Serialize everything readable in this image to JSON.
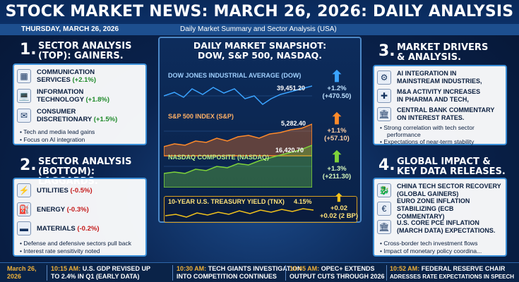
{
  "header": {
    "title": "STOCK MARKET NEWS: MARCH 26, 2026: DAILY ANALYSIS",
    "date": "THURSDAY, MARCH 26, 2026",
    "subtitle": "Daily Market Summary and Sector Analysis (USA)"
  },
  "section1": {
    "num": "1.",
    "title_line1": "SECTOR ANALYSIS",
    "title_line2": "(TOP): GAINERS.",
    "items": [
      {
        "name_line1": "COMMUNICATION",
        "name_line2": "SERVICES",
        "change": "(+2.1%)",
        "icon": "chip-icon"
      },
      {
        "name_line1": "INFORMATION",
        "name_line2": "TECHNOLOGY",
        "change": "(+1.8%)",
        "icon": "laptop-icon"
      },
      {
        "name_line1": "CONSUMER",
        "name_line2": "DISCRETIONARY",
        "change": "(+1.5%)",
        "icon": "chat-icon"
      }
    ],
    "bullets": [
      "Tech and media lead gains",
      "Focus on AI integration"
    ]
  },
  "section2": {
    "num": "2.",
    "title_line1": "SECTOR ANALYSIS",
    "title_line2": "(BOTTOM): LAGGARDS.",
    "items": [
      {
        "name": "UTILITIES",
        "change": "(-0.5%)",
        "icon": "power-tower-icon"
      },
      {
        "name": "ENERGY",
        "change": "(-0.3%)",
        "icon": "oil-pump-icon"
      },
      {
        "name": "MATERIALS",
        "change": "(-0.2%)",
        "icon": "steel-bar-icon"
      }
    ],
    "bullets": [
      "Defense and defensive sectors pull back",
      "Interest rate sensitivity noted"
    ]
  },
  "center": {
    "title_line1": "DAILY MARKET SNAPSHOT:",
    "title_line2": "DOW, S&P 500, NASDAQ.",
    "dow": {
      "label": "DOW JONES INDUSTRIAL AVERAGE (DOW)",
      "value": "39,451.20",
      "pct": "+1.2%",
      "pts": "(+470.50)"
    },
    "sp": {
      "label": "S&P 500 INDEX (S&P)",
      "value": "5,282.40",
      "pct": "+1.1%",
      "pts": "(+57.10)"
    },
    "nasdaq": {
      "label": "NASDAQ COMPOSITE (NASDAQ)",
      "value": "16,420.70",
      "pct": "+1.3%",
      "pts": "(+211.30)"
    },
    "tnx": {
      "label": "10-YEAR U.S. TREASURY YIELD (TNX)",
      "value": "4.15%",
      "chg": "+0.02",
      "chg2": "+0.02 (2 BP)"
    }
  },
  "section3": {
    "num": "3.",
    "title_line1": "MARKET DRIVERS",
    "title_line2": "& ANALYSIS.",
    "items": [
      {
        "l1": "AI INTEGRATION IN",
        "l2": "MAINSTREAM INDUSTRIES,",
        "icon": "robot-arm-icon"
      },
      {
        "l1": "M&A ACTIVITY INCREASES",
        "l2": "IN PHARMA AND TECH,",
        "icon": "handshake-icon"
      },
      {
        "l1": "CENTRAL BANK COMMENTARY",
        "l2": "ON INTEREST RATES.",
        "icon": "bank-icon"
      }
    ],
    "bullets": [
      "Strong correlation with tech sector",
      "performance",
      "Expectations of near-term stability"
    ]
  },
  "section4": {
    "num": "4.",
    "title_line1": "GLOBAL IMPACT &",
    "title_line2": "KEY DATA RELEASES.",
    "items": [
      {
        "l1": "CHINA TECH SECTOR RECOVERY",
        "l2": "(GLOBAL GAINERS)",
        "icon": "dragon-icon"
      },
      {
        "l1": "EURO ZONE INFLATION",
        "l2": "STABILIZING (ECB COMMENTARY)",
        "icon": "euro-icon"
      },
      {
        "l1": "U.S. CORE PCE INFLATION",
        "l2": "(MARCH DATA) EXPECTATIONS.",
        "icon": "capitol-icon"
      }
    ],
    "bullets": [
      "Cross-border tech investment flows",
      "Impact of monetary policy coordina..."
    ]
  },
  "ticker": {
    "date_l1": "March 26,",
    "date_l2": "2026",
    "items": [
      {
        "time": "10:15 AM:",
        "l1": "U.S. GDP REVISED UP",
        "l2": "TO 2.4% IN Q1 (EARLY DATA)"
      },
      {
        "time": "10:30 AM:",
        "l1": "TECH GIANTS INVESTIGATION",
        "l2": "INTO COMPETITION CONTINUES"
      },
      {
        "time": "10:45 AM:",
        "l1": "OPEC+ EXTENDS",
        "l2": "OUTPUT CUTS THROUGH 2026"
      },
      {
        "time": "10:52 AM:",
        "l1": "FEDERAL RESERVE CHAIR",
        "l2": "ADRESSES RATE EXPECTATIONS IN SPEECH"
      }
    ]
  },
  "colors": {
    "gain": "#1f8a2a",
    "loss": "#c41a1a",
    "dow": "#3aa3ff",
    "sp": "#ff8a2a",
    "nasdaq": "#7ed23a",
    "tnx": "#f2c21b"
  }
}
